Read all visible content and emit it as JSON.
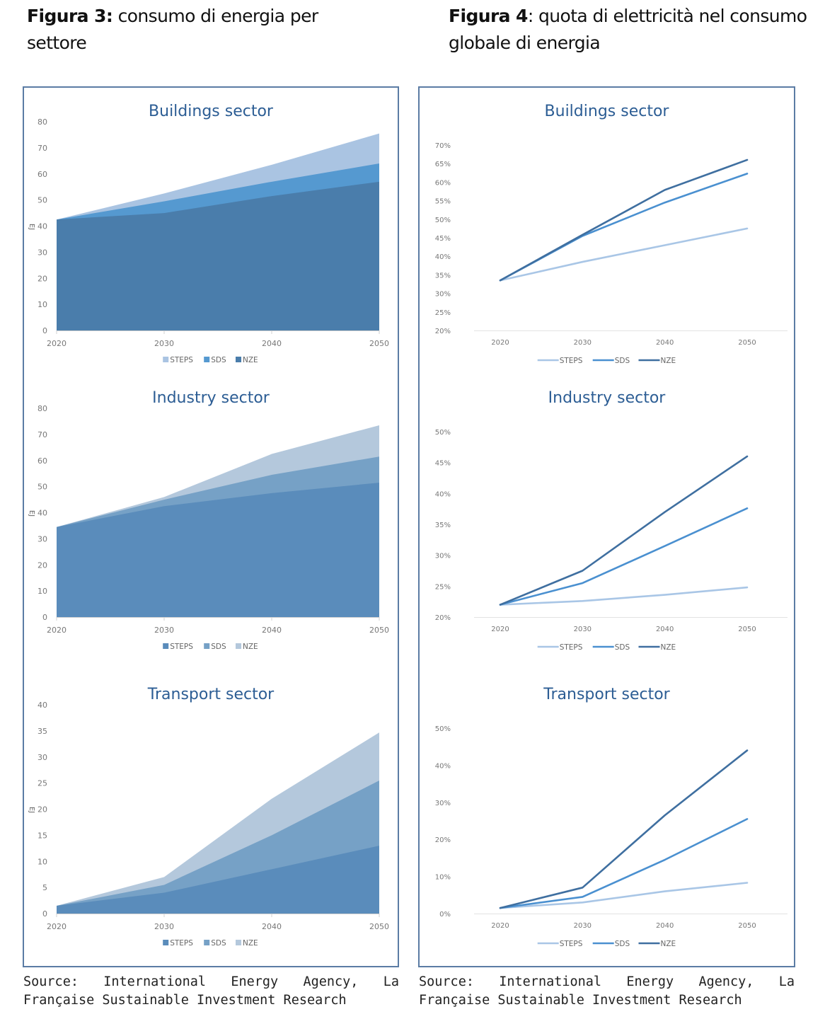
{
  "captions": {
    "left": {
      "label": "Figura 3:",
      "text": " consumo di energia per settore"
    },
    "right": {
      "label": "Figura 4",
      "text": ": quota di elettricità nel consumo globale di energia"
    }
  },
  "sources": {
    "left": "Source: International Energy Agency, La Française Sustainable Investment Research",
    "right": "Source: International Energy Agency, La Française Sustainable Investment Research"
  },
  "chart_data": [
    {
      "id": "energy-buildings",
      "type": "area",
      "title": "Buildings sector",
      "ylabel": "EJ",
      "xlabel": "",
      "categories": [
        "2020",
        "2030",
        "2040",
        "2050"
      ],
      "ylim": [
        0,
        80
      ],
      "yticks": [
        0,
        10,
        20,
        30,
        40,
        50,
        60,
        70,
        80
      ],
      "ytick_labels": [
        "0",
        "10",
        "20",
        "30",
        "40",
        "50",
        "60",
        "70",
        "80"
      ],
      "grid": false,
      "legend_position": "bottom",
      "legend": [
        "STEPS",
        "SDS",
        "NZE"
      ],
      "series": [
        {
          "name": "STEPS",
          "values": [
            42.5,
            52.5,
            63.5,
            75.5
          ],
          "color": "#aac4e2"
        },
        {
          "name": "SDS",
          "values": [
            42.5,
            49.5,
            57,
            64
          ],
          "color": "#5599d0"
        },
        {
          "name": "NZE",
          "values": [
            42.5,
            45,
            51.5,
            57
          ],
          "color": "#4a7dab"
        }
      ]
    },
    {
      "id": "energy-industry",
      "type": "area",
      "title": "Industry sector",
      "ylabel": "EJ",
      "xlabel": "",
      "categories": [
        "2020",
        "2030",
        "2040",
        "2050"
      ],
      "ylim": [
        0,
        80
      ],
      "yticks": [
        0,
        10,
        20,
        30,
        40,
        50,
        60,
        70,
        80
      ],
      "ytick_labels": [
        "0",
        "10",
        "20",
        "30",
        "40",
        "50",
        "60",
        "70",
        "80"
      ],
      "grid": false,
      "legend_position": "bottom",
      "legend": [
        "STEPS",
        "SDS",
        "NZE"
      ],
      "series": [
        {
          "name": "STEPS",
          "values": [
            34.5,
            42.5,
            47.5,
            51.5
          ],
          "color": "#5a8cbb"
        },
        {
          "name": "SDS",
          "values": [
            34.5,
            45,
            54.5,
            61.5
          ],
          "color": "#76a1c6"
        },
        {
          "name": "NZE",
          "values": [
            34.5,
            46,
            62.5,
            73.5
          ],
          "color": "#b4c8dc"
        }
      ]
    },
    {
      "id": "energy-transport",
      "type": "area",
      "title": "Transport sector",
      "ylabel": "EJ",
      "xlabel": "",
      "categories": [
        "2020",
        "2030",
        "2040",
        "2050"
      ],
      "ylim": [
        0,
        40
      ],
      "yticks": [
        0,
        5,
        10,
        15,
        20,
        25,
        30,
        35,
        40
      ],
      "ytick_labels": [
        "0",
        "5",
        "10",
        "15",
        "20",
        "25",
        "30",
        "35",
        "40"
      ],
      "grid": false,
      "legend_position": "bottom",
      "legend": [
        "STEPS",
        "SDS",
        "NZE"
      ],
      "series": [
        {
          "name": "STEPS",
          "values": [
            1.5,
            4,
            8.5,
            13
          ],
          "color": "#5a8cbb"
        },
        {
          "name": "SDS",
          "values": [
            1.5,
            5.5,
            15,
            25.5
          ],
          "color": "#76a1c6"
        },
        {
          "name": "NZE",
          "values": [
            1.5,
            7,
            22,
            34.7
          ],
          "color": "#b4c8dc"
        }
      ]
    },
    {
      "id": "share-buildings",
      "type": "line",
      "title": "Buildings sector",
      "ylabel": "",
      "xlabel": "",
      "categories": [
        "2020",
        "2030",
        "2040",
        "2050"
      ],
      "ylim": [
        20,
        70
      ],
      "yticks": [
        20,
        25,
        30,
        35,
        40,
        45,
        50,
        55,
        60,
        65,
        70
      ],
      "ytick_labels": [
        "20%",
        "25%",
        "30%",
        "35%",
        "40%",
        "45%",
        "50%",
        "55%",
        "60%",
        "65%",
        "70%"
      ],
      "grid": false,
      "legend_position": "bottom",
      "legend": [
        "STEPS",
        "SDS",
        "NZE"
      ],
      "series": [
        {
          "name": "STEPS",
          "values": [
            33.5,
            38.5,
            43,
            47.5
          ],
          "color": "#a9c6e6"
        },
        {
          "name": "SDS",
          "values": [
            33.5,
            45.5,
            54.5,
            62.3
          ],
          "color": "#4a90d0"
        },
        {
          "name": "NZE",
          "values": [
            33.5,
            45.8,
            57.9,
            66
          ],
          "color": "#3f6fa0"
        }
      ]
    },
    {
      "id": "share-industry",
      "type": "line",
      "title": "Industry sector",
      "ylabel": "",
      "xlabel": "",
      "categories": [
        "2020",
        "2030",
        "2040",
        "2050"
      ],
      "ylim": [
        20,
        50
      ],
      "yticks": [
        20,
        25,
        30,
        35,
        40,
        45,
        50
      ],
      "ytick_labels": [
        "20%",
        "25%",
        "30%",
        "35%",
        "40%",
        "45%",
        "50%"
      ],
      "grid": false,
      "legend_position": "bottom",
      "legend": [
        "STEPS",
        "SDS",
        "NZE"
      ],
      "series": [
        {
          "name": "STEPS",
          "values": [
            22,
            22.6,
            23.6,
            24.8
          ],
          "color": "#a9c6e6"
        },
        {
          "name": "SDS",
          "values": [
            22,
            25.5,
            31.5,
            37.6
          ],
          "color": "#4a90d0"
        },
        {
          "name": "NZE",
          "values": [
            22,
            27.5,
            37,
            46
          ],
          "color": "#3f6fa0"
        }
      ]
    },
    {
      "id": "share-transport",
      "type": "line",
      "title": "Transport sector",
      "ylabel": "",
      "xlabel": "",
      "categories": [
        "2020",
        "2030",
        "2040",
        "2050"
      ],
      "ylim": [
        0,
        50
      ],
      "yticks": [
        0,
        10,
        20,
        30,
        40,
        50
      ],
      "ytick_labels": [
        "0%",
        "10%",
        "20%",
        "30%",
        "40%",
        "50%"
      ],
      "grid": false,
      "legend_position": "bottom",
      "legend": [
        "STEPS",
        "SDS",
        "NZE"
      ],
      "series": [
        {
          "name": "STEPS",
          "values": [
            1.5,
            3,
            6,
            8.3
          ],
          "color": "#a9c6e6"
        },
        {
          "name": "SDS",
          "values": [
            1.5,
            4.5,
            14.5,
            25.5
          ],
          "color": "#4a90d0"
        },
        {
          "name": "NZE",
          "values": [
            1.5,
            7,
            26.5,
            44
          ],
          "color": "#3f6fa0"
        }
      ]
    }
  ]
}
